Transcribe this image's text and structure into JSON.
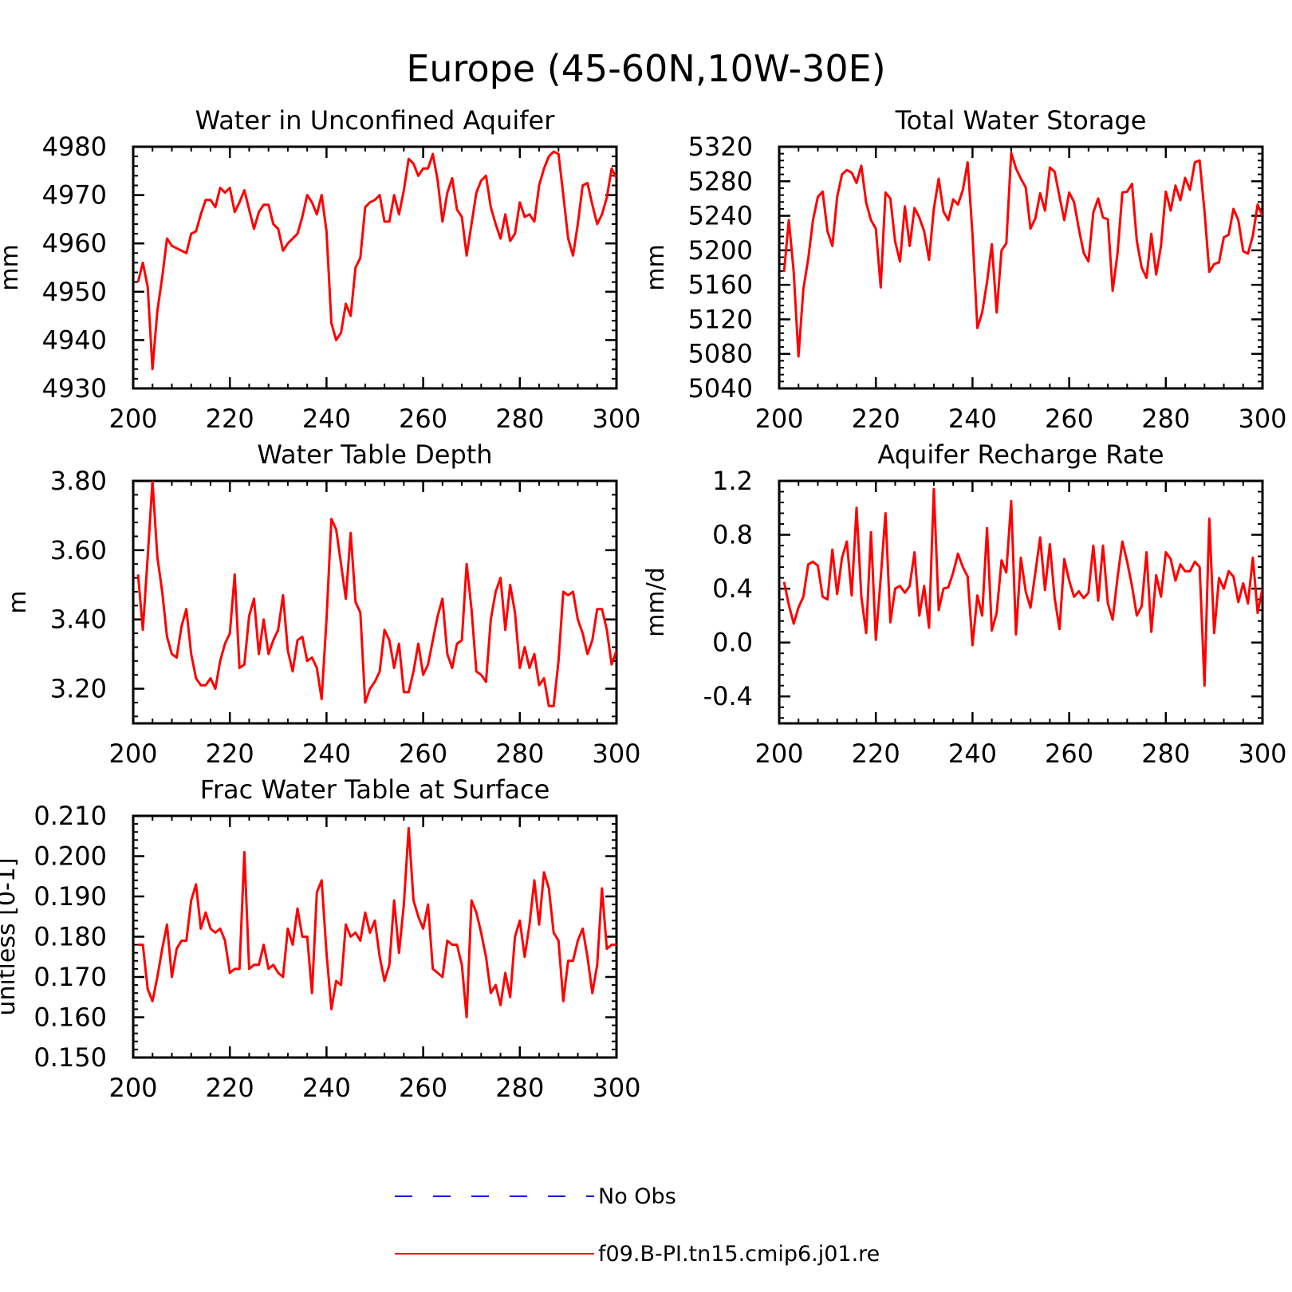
{
  "title": "Europe (45-60N,10W-30E)",
  "legend": [
    {
      "label": "No Obs",
      "color": "#0000ff",
      "style": "dashed"
    },
    {
      "label": "f09.B-PI.tn15.cmip6.j01.re",
      "color": "#ff0000",
      "style": "solid"
    }
  ],
  "chart_data": [
    {
      "type": "line",
      "title": "Water in Unconfined Aquifer",
      "xlabel": "",
      "ylabel": "mm",
      "xlim": [
        200,
        300
      ],
      "ylim": [
        4930,
        4980
      ],
      "xticks": [
        200,
        220,
        240,
        260,
        280,
        300
      ],
      "yticks": [
        4930,
        4940,
        4950,
        4960,
        4970,
        4980
      ],
      "yticklabels": [
        "4930",
        "4940",
        "4950",
        "4960",
        "4970",
        "4980"
      ],
      "x_start": 201,
      "series": [
        {
          "color": "#ff0000",
          "values": [
            4952,
            4956,
            4951,
            4934,
            4946,
            4953,
            4961,
            4959.5,
            4959,
            4958.5,
            4958,
            4962,
            4962.5,
            4966,
            4969,
            4969,
            4967.5,
            4971.5,
            4970.5,
            4971.5,
            4966.5,
            4968.5,
            4971,
            4967,
            4963,
            4966.5,
            4968,
            4968,
            4964,
            4963,
            4958.5,
            4960,
            4961,
            4962,
            4965.5,
            4970,
            4968.5,
            4966,
            4970,
            4962.5,
            4943.5,
            4940,
            4941.5,
            4947.5,
            4945,
            4955,
            4957,
            4967.5,
            4968.5,
            4969,
            4970,
            4964.5,
            4964.5,
            4970,
            4966,
            4971,
            4977.5,
            4976.5,
            4974,
            4975.5,
            4975.5,
            4978.5,
            4973,
            4964.5,
            4970.5,
            4973.5,
            4967,
            4965.5,
            4957.5,
            4964,
            4970.5,
            4973,
            4974,
            4967.5,
            4964,
            4961,
            4966,
            4960.5,
            4962,
            4968.5,
            4965.5,
            4966,
            4964.5,
            4972,
            4975.5,
            4978,
            4979,
            4978.5,
            4970,
            4961,
            4957.5,
            4964,
            4972,
            4972.5,
            4968,
            4964,
            4966,
            4969.5,
            4975.5,
            4973.5
          ]
        }
      ]
    },
    {
      "type": "line",
      "title": "Total Water Storage",
      "xlabel": "",
      "ylabel": "mm",
      "xlim": [
        200,
        300
      ],
      "ylim": [
        5040,
        5320
      ],
      "xticks": [
        200,
        220,
        240,
        260,
        280,
        300
      ],
      "yticks": [
        5040,
        5080,
        5120,
        5160,
        5200,
        5240,
        5280,
        5320
      ],
      "yticklabels": [
        "5040",
        "5080",
        "5120",
        "5160",
        "5200",
        "5240",
        "5280",
        "5320"
      ],
      "x_start": 201,
      "series": [
        {
          "color": "#ff0000",
          "values": [
            5175,
            5235,
            5175,
            5077,
            5155,
            5190,
            5235,
            5262,
            5268,
            5222,
            5205,
            5262,
            5288,
            5293,
            5290,
            5278,
            5298,
            5255,
            5235,
            5225,
            5157,
            5267,
            5260,
            5210,
            5187,
            5251,
            5205,
            5249,
            5238,
            5222,
            5189,
            5248,
            5283,
            5245,
            5235,
            5259,
            5253,
            5270,
            5302,
            5218,
            5110,
            5128,
            5163,
            5207,
            5128,
            5200,
            5208,
            5313,
            5295,
            5283,
            5273,
            5225,
            5237,
            5266,
            5246,
            5296,
            5291,
            5262,
            5235,
            5267,
            5256,
            5225,
            5197,
            5187,
            5244,
            5260,
            5238,
            5236,
            5153,
            5196,
            5267,
            5268,
            5277,
            5211,
            5180,
            5168,
            5219,
            5172,
            5205,
            5268,
            5246,
            5275,
            5258,
            5284,
            5270,
            5302,
            5304,
            5245,
            5175,
            5184,
            5186,
            5215,
            5218,
            5248,
            5235,
            5199,
            5196,
            5217,
            5253,
            5240
          ]
        }
      ]
    },
    {
      "type": "line",
      "title": "Water Table Depth",
      "xlabel": "",
      "ylabel": "m",
      "xlim": [
        200,
        300
      ],
      "ylim": [
        3.1,
        3.8
      ],
      "xticks": [
        200,
        220,
        240,
        260,
        280,
        300
      ],
      "yticks": [
        3.2,
        3.4,
        3.6,
        3.8
      ],
      "yticklabels": [
        "3.20",
        "3.40",
        "3.60",
        "3.80"
      ],
      "x_start": 201,
      "series": [
        {
          "color": "#ff0000",
          "values": [
            3.53,
            3.37,
            3.58,
            3.8,
            3.58,
            3.48,
            3.35,
            3.3,
            3.29,
            3.38,
            3.43,
            3.3,
            3.23,
            3.21,
            3.21,
            3.23,
            3.2,
            3.28,
            3.33,
            3.36,
            3.53,
            3.26,
            3.27,
            3.41,
            3.46,
            3.3,
            3.4,
            3.3,
            3.34,
            3.37,
            3.47,
            3.31,
            3.25,
            3.34,
            3.35,
            3.28,
            3.29,
            3.26,
            3.17,
            3.4,
            3.69,
            3.66,
            3.56,
            3.46,
            3.65,
            3.45,
            3.42,
            3.16,
            3.2,
            3.22,
            3.25,
            3.37,
            3.34,
            3.26,
            3.33,
            3.19,
            3.19,
            3.25,
            3.33,
            3.24,
            3.27,
            3.34,
            3.41,
            3.46,
            3.3,
            3.26,
            3.33,
            3.34,
            3.56,
            3.43,
            3.25,
            3.24,
            3.22,
            3.4,
            3.48,
            3.52,
            3.37,
            3.5,
            3.42,
            3.26,
            3.32,
            3.26,
            3.3,
            3.21,
            3.23,
            3.15,
            3.15,
            3.28,
            3.48,
            3.47,
            3.48,
            3.4,
            3.36,
            3.3,
            3.34,
            3.43,
            3.43,
            3.37,
            3.27,
            3.31
          ]
        }
      ]
    },
    {
      "type": "line",
      "title": "Aquifer Recharge Rate",
      "xlabel": "",
      "ylabel": "mm/d",
      "xlim": [
        200,
        300
      ],
      "ylim": [
        -0.6,
        1.2
      ],
      "xticks": [
        200,
        220,
        240,
        260,
        280,
        300
      ],
      "yticks": [
        -0.4,
        0.0,
        0.4,
        0.8,
        1.2
      ],
      "yticklabels": [
        "-0.4",
        "0.0",
        "0.4",
        "0.8",
        "1.2"
      ],
      "x_start": 201,
      "series": [
        {
          "color": "#ff0000",
          "values": [
            0.45,
            0.28,
            0.14,
            0.26,
            0.34,
            0.58,
            0.6,
            0.57,
            0.34,
            0.32,
            0.69,
            0.36,
            0.63,
            0.75,
            0.35,
            1.0,
            0.34,
            0.07,
            0.82,
            0.02,
            0.48,
            0.96,
            0.15,
            0.4,
            0.42,
            0.37,
            0.42,
            0.67,
            0.2,
            0.42,
            0.11,
            1.14,
            0.24,
            0.4,
            0.41,
            0.52,
            0.66,
            0.56,
            0.49,
            -0.02,
            0.35,
            0.2,
            0.85,
            0.09,
            0.22,
            0.61,
            0.52,
            1.05,
            0.06,
            0.63,
            0.38,
            0.26,
            0.52,
            0.78,
            0.39,
            0.73,
            0.33,
            0.1,
            0.62,
            0.46,
            0.34,
            0.38,
            0.33,
            0.37,
            0.72,
            0.31,
            0.72,
            0.29,
            0.17,
            0.48,
            0.75,
            0.6,
            0.42,
            0.2,
            0.27,
            0.67,
            0.08,
            0.5,
            0.34,
            0.67,
            0.62,
            0.46,
            0.58,
            0.53,
            0.53,
            0.6,
            0.56,
            -0.32,
            0.92,
            0.07,
            0.48,
            0.4,
            0.53,
            0.49,
            0.3,
            0.44,
            0.29,
            0.63,
            0.22,
            0.4
          ]
        }
      ]
    },
    {
      "type": "line",
      "title": "Frac Water Table at Surface",
      "xlabel": "",
      "ylabel": "unitless [0-1]",
      "xlim": [
        200,
        300
      ],
      "ylim": [
        0.15,
        0.21
      ],
      "xticks": [
        200,
        220,
        240,
        260,
        280,
        300
      ],
      "yticks": [
        0.15,
        0.16,
        0.17,
        0.18,
        0.19,
        0.2,
        0.21
      ],
      "yticklabels": [
        "0.150",
        "0.160",
        "0.170",
        "0.180",
        "0.190",
        "0.200",
        "0.210"
      ],
      "x_start": 201,
      "series": [
        {
          "color": "#ff0000",
          "values": [
            0.178,
            0.178,
            0.167,
            0.164,
            0.17,
            0.177,
            0.183,
            0.17,
            0.177,
            0.179,
            0.179,
            0.189,
            0.193,
            0.182,
            0.186,
            0.182,
            0.181,
            0.182,
            0.179,
            0.171,
            0.172,
            0.172,
            0.201,
            0.172,
            0.173,
            0.173,
            0.178,
            0.172,
            0.173,
            0.171,
            0.17,
            0.182,
            0.178,
            0.187,
            0.18,
            0.18,
            0.166,
            0.191,
            0.194,
            0.176,
            0.162,
            0.169,
            0.168,
            0.183,
            0.18,
            0.181,
            0.179,
            0.186,
            0.181,
            0.184,
            0.175,
            0.169,
            0.173,
            0.189,
            0.176,
            0.188,
            0.207,
            0.189,
            0.185,
            0.182,
            0.188,
            0.172,
            0.171,
            0.17,
            0.179,
            0.178,
            0.178,
            0.173,
            0.16,
            0.189,
            0.186,
            0.181,
            0.175,
            0.166,
            0.168,
            0.163,
            0.171,
            0.165,
            0.18,
            0.184,
            0.175,
            0.183,
            0.194,
            0.183,
            0.196,
            0.192,
            0.181,
            0.179,
            0.164,
            0.174,
            0.174,
            0.179,
            0.182,
            0.175,
            0.166,
            0.173,
            0.192,
            0.177,
            0.178,
            0.178
          ]
        }
      ]
    }
  ]
}
